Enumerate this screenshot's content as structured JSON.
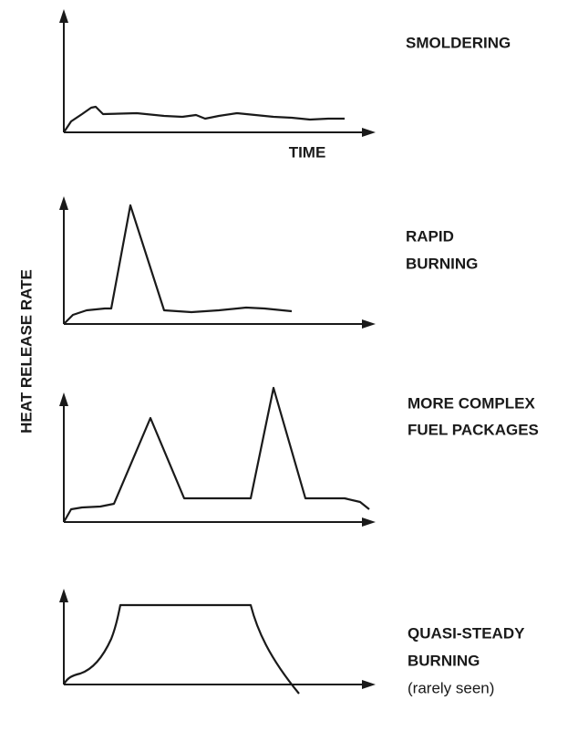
{
  "y_axis_label": "HEAT RELEASE RATE",
  "x_axis_label": "TIME",
  "panels": [
    {
      "label_lines": [
        "SMOLDERING"
      ]
    },
    {
      "label_lines": [
        "RAPID",
        "BURNING"
      ]
    },
    {
      "label_lines": [
        "MORE COMPLEX",
        "FUEL PACKAGES"
      ]
    },
    {
      "label_lines": [
        "QUASI-STEADY",
        "BURNING",
        "(rarely seen)"
      ]
    }
  ]
}
